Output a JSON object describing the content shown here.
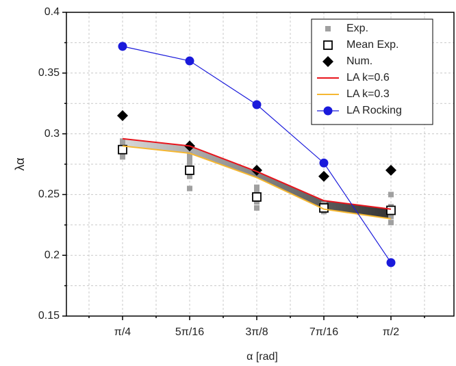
{
  "chart_data": {
    "type": "line",
    "x_label": "α [rad]",
    "y_label": "λα",
    "categories": [
      "π/4",
      "5π/16",
      "3π/8",
      "7π/16",
      "π/2"
    ],
    "ylim": [
      0.15,
      0.4
    ],
    "yticks": [
      0.15,
      0.2,
      0.25,
      0.3,
      0.35,
      0.4
    ],
    "grid": true,
    "legend": "top-right",
    "series": [
      {
        "name": "Exp.",
        "color": "#a0a0a0",
        "marker": "square",
        "style": "points",
        "x": [
          "π/4",
          "π/4",
          "π/4",
          "π/4",
          "π/4",
          "5π/16",
          "5π/16",
          "5π/16",
          "5π/16",
          "5π/16",
          "5π/16",
          "3π/8",
          "3π/8",
          "3π/8",
          "3π/8",
          "3π/8",
          "7π/16",
          "7π/16",
          "7π/16",
          "7π/16",
          "π/2",
          "π/2",
          "π/2",
          "π/2"
        ],
        "values": [
          0.294,
          0.291,
          0.288,
          0.284,
          0.281,
          0.283,
          0.279,
          0.275,
          0.27,
          0.265,
          0.255,
          0.256,
          0.252,
          0.248,
          0.244,
          0.239,
          0.242,
          0.24,
          0.238,
          0.236,
          0.25,
          0.24,
          0.232,
          0.227
        ]
      },
      {
        "name": "Mean Exp.",
        "color": "#000000",
        "marker": "open-square",
        "style": "points",
        "values": [
          0.287,
          0.27,
          0.248,
          0.239,
          0.237
        ]
      },
      {
        "name": "Num.",
        "color": "#000000",
        "marker": "diamond",
        "style": "points",
        "values": [
          0.315,
          0.29,
          0.27,
          0.265,
          0.27
        ]
      },
      {
        "name": "LA k=0.6",
        "color": "#e8141c",
        "style": "line",
        "values": [
          0.296,
          0.29,
          0.269,
          0.245,
          0.238
        ]
      },
      {
        "name": "LA k=0.3",
        "color": "#f5b731",
        "style": "line",
        "values": [
          0.29,
          0.284,
          0.264,
          0.238,
          0.23
        ]
      },
      {
        "name": "LA Rocking",
        "color": "#1a1adb",
        "marker": "circle",
        "style": "line",
        "values": [
          0.372,
          0.36,
          0.324,
          0.276,
          0.194
        ]
      }
    ]
  }
}
